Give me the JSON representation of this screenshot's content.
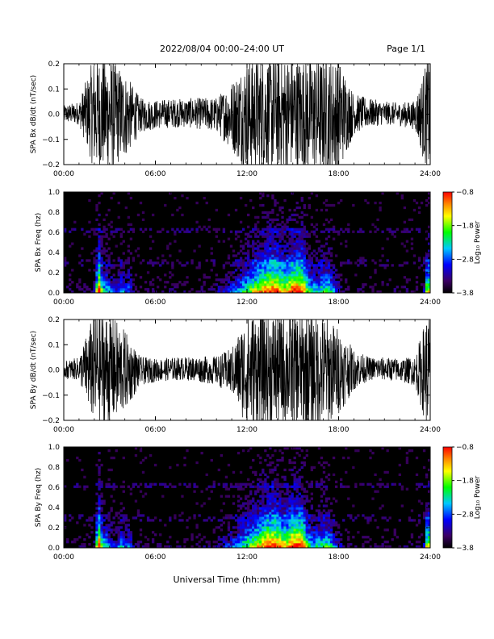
{
  "header": {
    "title": "2022/08/04  00:00–24:00 UT",
    "page": "Page 1/1"
  },
  "xaxis_label": "Universal Time (hh:mm)",
  "colors": {
    "trace": "#000000",
    "frame": "#000000",
    "background": "#ffffff"
  },
  "chart_data": [
    {
      "type": "line",
      "ylabel": "SPA Bx dB/dt (nT/sec)",
      "ylim": [
        -0.2,
        0.2
      ],
      "yticks": [
        "0.2",
        "0.1",
        "0.0",
        "−0.1",
        "−0.2"
      ],
      "xlim": [
        "00:00",
        "24:00"
      ],
      "xticks": [
        "00:00",
        "06:00",
        "12:00",
        "18:00",
        "24:00"
      ],
      "series": [
        {
          "x_hours": [
            0,
            1,
            2,
            2.5,
            3,
            4,
            5,
            6,
            8,
            10,
            11,
            12,
            13,
            14,
            15,
            16,
            17,
            18,
            19,
            20,
            21,
            22,
            23,
            23.8,
            24
          ],
          "amplitude": [
            0.03,
            0.04,
            0.2,
            0.2,
            0.2,
            0.15,
            0.06,
            0.05,
            0.05,
            0.06,
            0.12,
            0.2,
            0.2,
            0.2,
            0.2,
            0.2,
            0.2,
            0.2,
            0.07,
            0.05,
            0.04,
            0.04,
            0.05,
            0.2,
            0.2
          ]
        }
      ]
    },
    {
      "type": "heatmap",
      "ylabel": "SPA Bx Freq (hz)",
      "ylim": [
        0.0,
        1.0
      ],
      "yticks": [
        "1.0",
        "0.8",
        "0.6",
        "0.4",
        "0.2",
        "0.0"
      ],
      "xlim": [
        "00:00",
        "24:00"
      ],
      "xticks": [
        "00:00",
        "06:00",
        "12:00",
        "18:00",
        "24:00"
      ],
      "colorbar": {
        "label": "Log₁₀ Power",
        "ticks": [
          "−0.8",
          "−1.8",
          "−2.8",
          "−3.8"
        ],
        "range": [
          -3.8,
          -0.8
        ]
      }
    },
    {
      "type": "line",
      "ylabel": "SPA By dB/dt (nT/sec)",
      "ylim": [
        -0.2,
        0.2
      ],
      "yticks": [
        "0.2",
        "0.1",
        "0.0",
        "−0.1",
        "−0.2"
      ],
      "xlim": [
        "00:00",
        "24:00"
      ],
      "xticks": [
        "00:00",
        "06:00",
        "12:00",
        "18:00",
        "24:00"
      ],
      "series": [
        {
          "x_hours": [
            0,
            1,
            2,
            2.5,
            3,
            4,
            5,
            6,
            8,
            10,
            11,
            12,
            13,
            14,
            15,
            16,
            17,
            18,
            19,
            20,
            21,
            22,
            23,
            23.8,
            24
          ],
          "amplitude": [
            0.03,
            0.04,
            0.2,
            0.2,
            0.2,
            0.14,
            0.05,
            0.04,
            0.04,
            0.05,
            0.08,
            0.2,
            0.2,
            0.2,
            0.2,
            0.2,
            0.2,
            0.15,
            0.07,
            0.04,
            0.04,
            0.04,
            0.05,
            0.2,
            0.2
          ]
        }
      ]
    },
    {
      "type": "heatmap",
      "ylabel": "SPA By Freq (hz)",
      "ylim": [
        0.0,
        1.0
      ],
      "yticks": [
        "1.0",
        "0.8",
        "0.6",
        "0.4",
        "0.2",
        "0.0"
      ],
      "xlim": [
        "00:00",
        "24:00"
      ],
      "xticks": [
        "00:00",
        "06:00",
        "12:00",
        "18:00",
        "24:00"
      ],
      "colorbar": {
        "label": "Log₁₀ Power",
        "ticks": [
          "−0.8",
          "−1.8",
          "−2.8",
          "−3.8"
        ],
        "range": [
          -3.8,
          -0.8
        ]
      }
    }
  ]
}
